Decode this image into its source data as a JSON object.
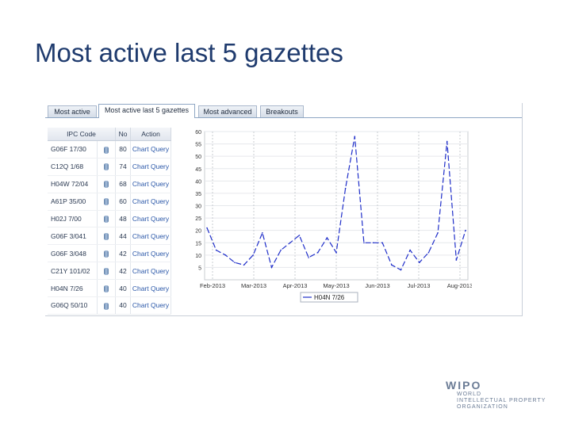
{
  "slide": {
    "title": "Most active last 5 gazettes"
  },
  "tabs": [
    {
      "label": "Most active",
      "active": false
    },
    {
      "label": "Most active last 5 gazettes",
      "active": true
    },
    {
      "label": "Most advanced",
      "active": false
    },
    {
      "label": "Breakouts",
      "active": false
    }
  ],
  "table": {
    "headers": [
      "IPC Code",
      "No",
      "Action"
    ],
    "rows": [
      {
        "code": "G06F 17/30",
        "no": "80",
        "action": "Chart Query"
      },
      {
        "code": "C12Q 1/68",
        "no": "74",
        "action": "Chart Query"
      },
      {
        "code": "H04W 72/04",
        "no": "68",
        "action": "Chart Query"
      },
      {
        "code": "A61P 35/00",
        "no": "60",
        "action": "Chart Query"
      },
      {
        "code": "H02J 7/00",
        "no": "48",
        "action": "Chart Query"
      },
      {
        "code": "G06F 3/041",
        "no": "44",
        "action": "Chart Query"
      },
      {
        "code": "G06F 3/048",
        "no": "42",
        "action": "Chart Query"
      },
      {
        "code": "C21Y 101/02",
        "no": "42",
        "action": "Chart Query"
      },
      {
        "code": "H04N 7/26",
        "no": "40",
        "action": "Chart Query"
      },
      {
        "code": "G06Q 50/10",
        "no": "40",
        "action": "Chart Query"
      }
    ]
  },
  "chart_data": {
    "type": "line",
    "series": [
      {
        "name": "H04N 7/26",
        "color": "#1f2ec9",
        "values": [
          21,
          12,
          10,
          7,
          6,
          10,
          19,
          5,
          12,
          15,
          18,
          9,
          11,
          17,
          11,
          37,
          58,
          15,
          15,
          15,
          6,
          4,
          12,
          7,
          11,
          19,
          56,
          8,
          20
        ]
      }
    ],
    "x_tick_labels": [
      "Feb-2013",
      "Mar-2013",
      "Apr-2013",
      "May-2013",
      "Jun-2013",
      "Jul-2013",
      "Aug-2013"
    ],
    "y_tick_labels": [
      "5",
      "10",
      "15",
      "20",
      "25",
      "30",
      "35",
      "40",
      "45",
      "50",
      "55",
      "60"
    ],
    "ylim": [
      0,
      60
    ],
    "grid": true,
    "legend": "bottom"
  },
  "branding": {
    "logo": "WIPO",
    "lines": [
      "WORLD",
      "INTELLECTUAL PROPERTY",
      "ORGANIZATION"
    ]
  }
}
